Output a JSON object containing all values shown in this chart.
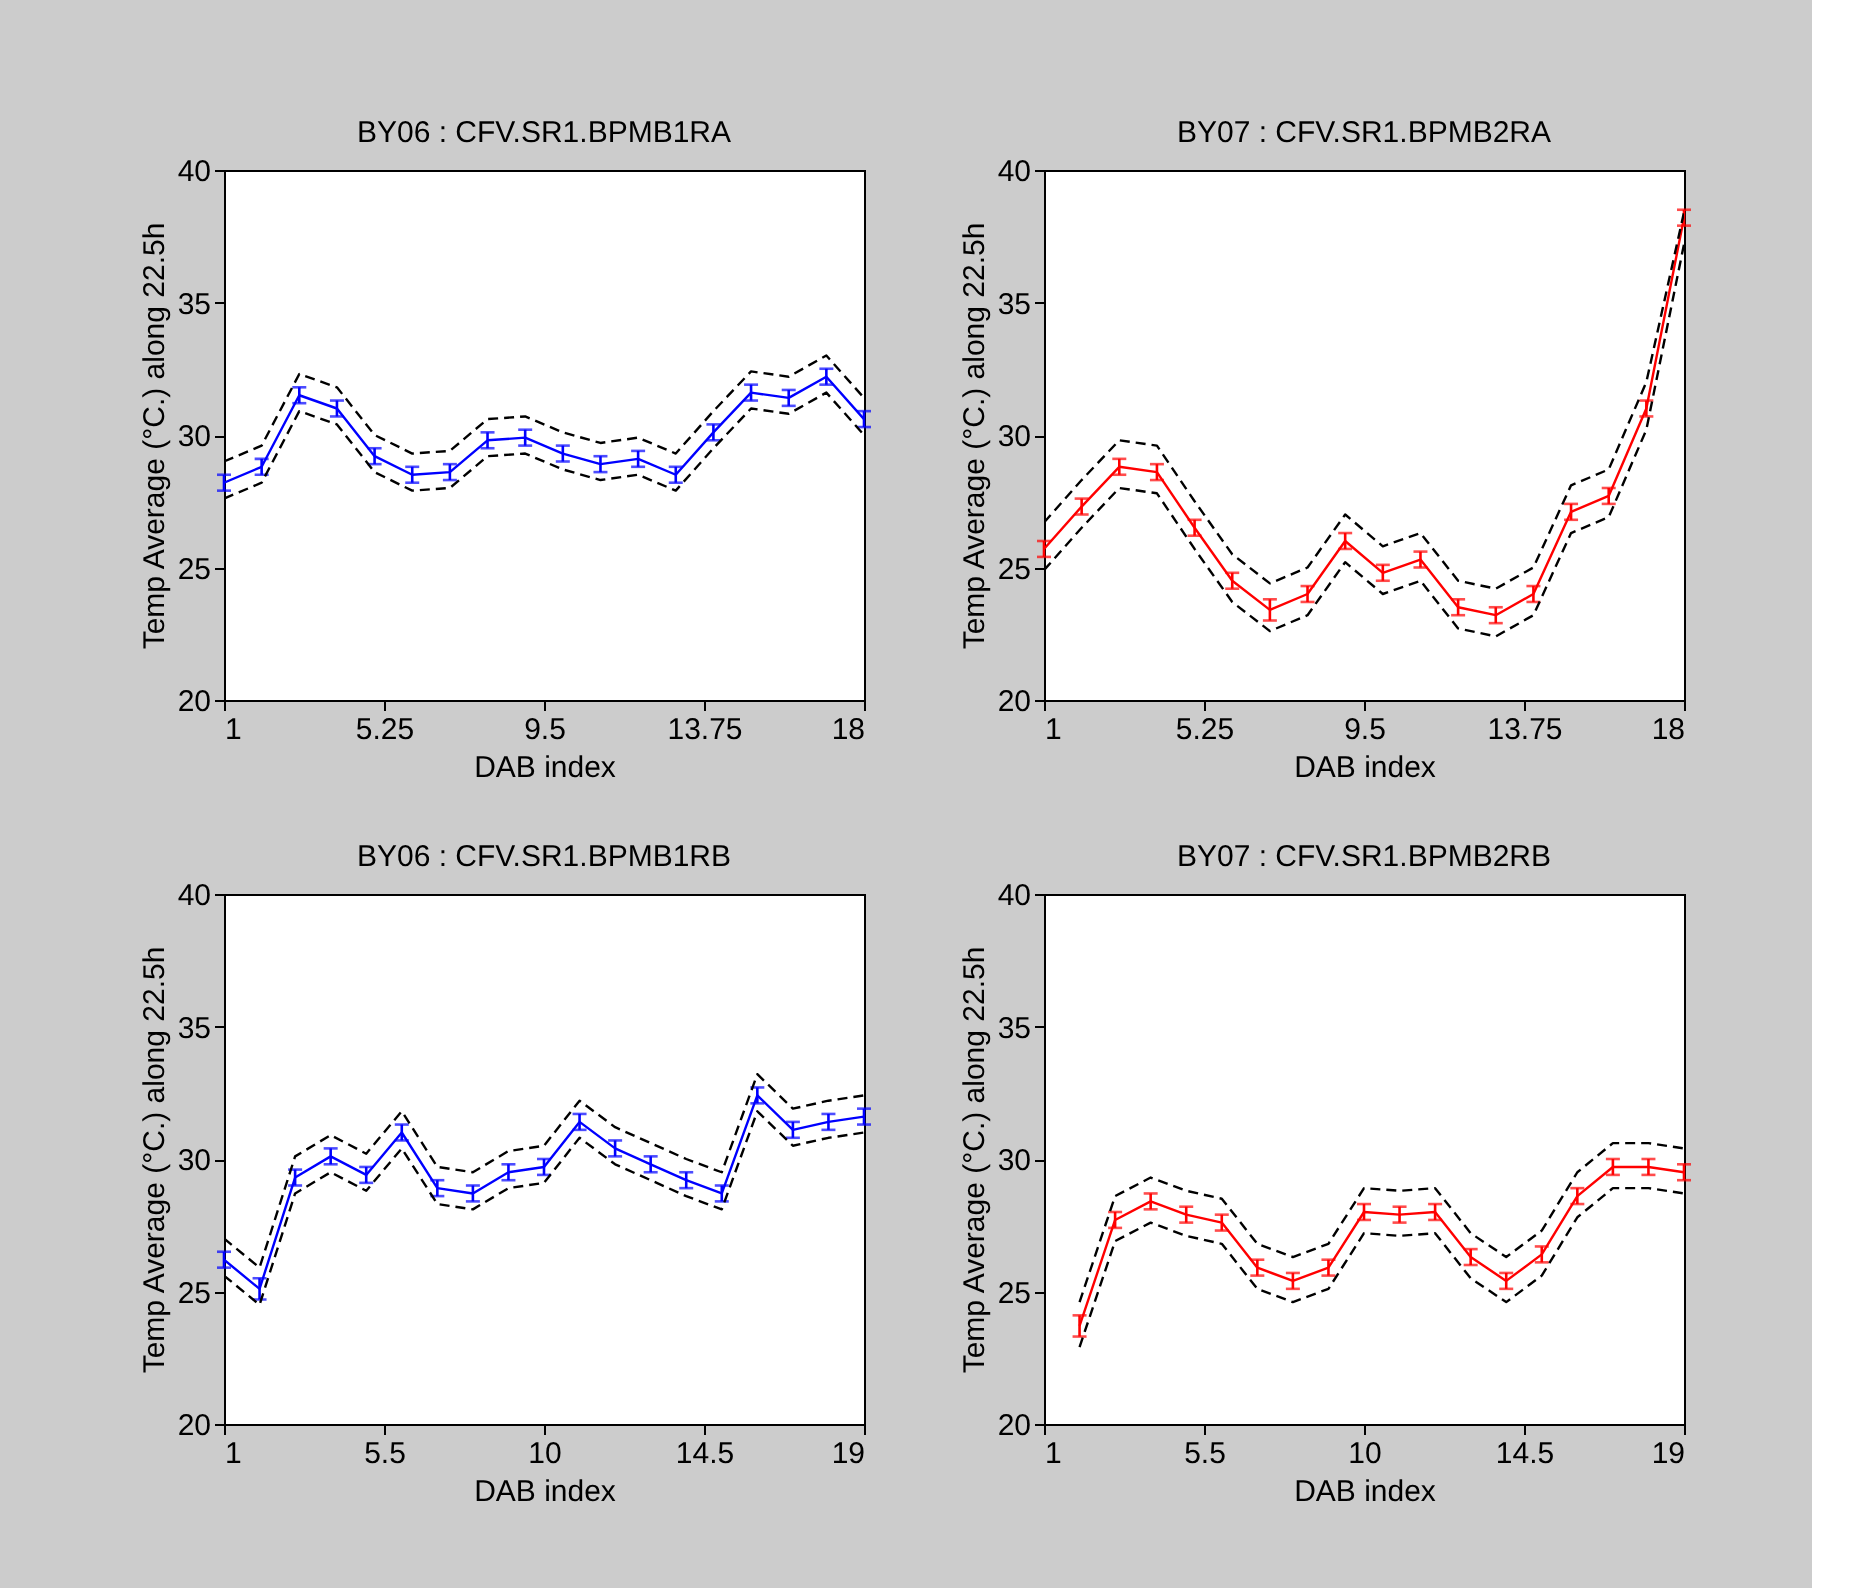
{
  "chart_data": [
    {
      "type": "line",
      "title": "BY06 : CFV.SR1.BPMB1RA",
      "xlabel": "DAB index",
      "ylabel": "Temp Average (°C.) along 22.5h",
      "x": [
        1,
        2,
        3,
        4,
        5,
        6,
        7,
        8,
        9,
        10,
        11,
        12,
        13,
        14,
        15,
        16,
        17,
        18
      ],
      "xlim": [
        1,
        18
      ],
      "xticks": [
        1,
        5.25,
        9.5,
        13.75,
        18
      ],
      "ylim": [
        20,
        40
      ],
      "yticks": [
        20,
        25,
        30,
        35,
        40
      ],
      "grid": false,
      "series": [
        {
          "color": "#0000ff",
          "line_style": "solid",
          "values": [
            28.2,
            28.8,
            31.5,
            31.0,
            29.2,
            28.5,
            28.6,
            29.8,
            29.9,
            29.3,
            28.9,
            29.1,
            28.5,
            30.1,
            31.6,
            31.4,
            32.2,
            30.6
          ],
          "errors": [
            0.3,
            0.3,
            0.3,
            0.3,
            0.3,
            0.3,
            0.3,
            0.3,
            0.3,
            0.3,
            0.3,
            0.3,
            0.3,
            0.3,
            0.3,
            0.3,
            0.3,
            0.3
          ]
        },
        {
          "color": "#000000",
          "line_style": "dashed",
          "values": [
            29.0,
            29.6,
            32.3,
            31.8,
            30.0,
            29.3,
            29.4,
            30.6,
            30.7,
            30.1,
            29.7,
            29.9,
            29.3,
            30.9,
            32.4,
            32.2,
            33.0,
            31.4
          ]
        },
        {
          "color": "#000000",
          "line_style": "dashed",
          "values": [
            27.6,
            28.2,
            30.9,
            30.4,
            28.6,
            27.9,
            28.0,
            29.2,
            29.3,
            28.7,
            28.3,
            28.5,
            27.9,
            29.5,
            31.0,
            30.8,
            31.6,
            30.0
          ]
        }
      ]
    },
    {
      "type": "line",
      "title": "BY07 : CFV.SR1.BPMB2RA",
      "xlabel": "DAB index",
      "ylabel": "Temp Average (°C.) along 22.5h",
      "x": [
        1,
        2,
        3,
        4,
        5,
        6,
        7,
        8,
        9,
        10,
        11,
        12,
        13,
        14,
        15,
        16,
        17,
        18
      ],
      "xlim": [
        1,
        18
      ],
      "xticks": [
        1,
        5.25,
        9.5,
        13.75,
        18
      ],
      "ylim": [
        20,
        40
      ],
      "yticks": [
        20,
        25,
        30,
        35,
        40
      ],
      "grid": false,
      "series": [
        {
          "color": "#ff0000",
          "line_style": "solid",
          "values": [
            25.7,
            27.3,
            28.8,
            28.6,
            26.5,
            24.5,
            23.4,
            24.0,
            26.0,
            24.8,
            25.3,
            23.5,
            23.2,
            24.0,
            27.1,
            27.7,
            31.0,
            38.2
          ],
          "errors": [
            0.3,
            0.3,
            0.3,
            0.3,
            0.3,
            0.3,
            0.4,
            0.3,
            0.3,
            0.3,
            0.3,
            0.3,
            0.3,
            0.3,
            0.3,
            0.3,
            0.3,
            0.3
          ]
        },
        {
          "color": "#000000",
          "line_style": "dashed",
          "values": [
            26.7,
            28.3,
            29.8,
            29.6,
            27.5,
            25.5,
            24.4,
            25.0,
            27.0,
            25.8,
            26.3,
            24.5,
            24.2,
            25.0,
            28.1,
            28.7,
            32.0,
            38.4
          ]
        },
        {
          "color": "#000000",
          "line_style": "dashed",
          "values": [
            24.9,
            26.5,
            28.0,
            27.8,
            25.7,
            23.7,
            22.6,
            23.2,
            25.2,
            24.0,
            24.5,
            22.7,
            22.4,
            23.2,
            26.3,
            26.9,
            30.2,
            37.2
          ]
        }
      ]
    },
    {
      "type": "line",
      "title": "BY06 : CFV.SR1.BPMB1RB",
      "xlabel": "DAB index",
      "ylabel": "Temp Average (°C.) along 22.5h",
      "x": [
        1,
        2,
        3,
        4,
        5,
        6,
        7,
        8,
        9,
        10,
        11,
        12,
        13,
        14,
        15,
        16,
        17,
        18,
        19
      ],
      "xlim": [
        1,
        19
      ],
      "xticks": [
        1,
        5.5,
        10,
        14.5,
        19
      ],
      "ylim": [
        20,
        40
      ],
      "yticks": [
        20,
        25,
        30,
        35,
        40
      ],
      "grid": false,
      "series": [
        {
          "color": "#0000ff",
          "line_style": "solid",
          "values": [
            26.2,
            25.1,
            29.3,
            30.1,
            29.4,
            31.0,
            28.9,
            28.7,
            29.5,
            29.7,
            31.4,
            30.4,
            29.8,
            29.2,
            28.7,
            32.4,
            31.1,
            31.4,
            31.6
          ],
          "errors": [
            0.3,
            0.4,
            0.3,
            0.3,
            0.3,
            0.3,
            0.3,
            0.3,
            0.3,
            0.3,
            0.3,
            0.3,
            0.3,
            0.3,
            0.3,
            0.3,
            0.3,
            0.3,
            0.3
          ]
        },
        {
          "color": "#000000",
          "line_style": "dashed",
          "values": [
            27.0,
            25.9,
            30.1,
            30.9,
            30.2,
            31.8,
            29.7,
            29.5,
            30.3,
            30.5,
            32.2,
            31.2,
            30.6,
            30.0,
            29.5,
            33.2,
            31.9,
            32.2,
            32.4
          ]
        },
        {
          "color": "#000000",
          "line_style": "dashed",
          "values": [
            25.6,
            24.5,
            28.7,
            29.5,
            28.8,
            30.4,
            28.3,
            28.1,
            28.9,
            29.1,
            30.8,
            29.8,
            29.2,
            28.6,
            28.1,
            31.8,
            30.5,
            30.8,
            31.0
          ]
        }
      ]
    },
    {
      "type": "line",
      "title": "BY07 : CFV.SR1.BPMB2RB",
      "xlabel": "DAB index",
      "ylabel": "Temp Average (°C.) along 22.5h",
      "x": [
        2,
        3,
        4,
        5,
        6,
        7,
        8,
        9,
        10,
        11,
        12,
        13,
        14,
        15,
        16,
        17,
        18,
        19
      ],
      "xlim": [
        1,
        19
      ],
      "xticks": [
        1,
        5.5,
        10,
        14.5,
        19
      ],
      "ylim": [
        20,
        40
      ],
      "yticks": [
        20,
        25,
        30,
        35,
        40
      ],
      "grid": false,
      "series": [
        {
          "color": "#ff0000",
          "line_style": "solid",
          "values": [
            23.7,
            27.7,
            28.4,
            27.9,
            27.6,
            25.9,
            25.4,
            25.9,
            28.0,
            27.9,
            28.0,
            26.3,
            25.4,
            26.4,
            28.6,
            29.7,
            29.7,
            29.5
          ],
          "errors": [
            0.4,
            0.3,
            0.3,
            0.3,
            0.3,
            0.3,
            0.3,
            0.3,
            0.3,
            0.3,
            0.3,
            0.3,
            0.3,
            0.3,
            0.3,
            0.3,
            0.3,
            0.3
          ]
        },
        {
          "color": "#000000",
          "line_style": "dashed",
          "values": [
            24.6,
            28.6,
            29.3,
            28.8,
            28.5,
            26.8,
            26.3,
            26.8,
            28.9,
            28.8,
            28.9,
            27.2,
            26.3,
            27.3,
            29.5,
            30.6,
            30.6,
            30.4
          ]
        },
        {
          "color": "#000000",
          "line_style": "dashed",
          "values": [
            22.9,
            26.9,
            27.6,
            27.1,
            26.8,
            25.1,
            24.6,
            25.1,
            27.2,
            27.1,
            27.2,
            25.5,
            24.6,
            25.6,
            27.8,
            28.9,
            28.9,
            28.7
          ]
        }
      ]
    }
  ]
}
